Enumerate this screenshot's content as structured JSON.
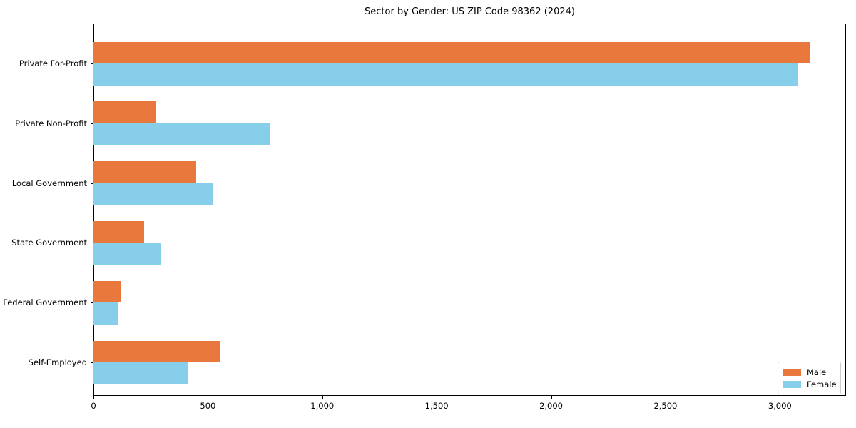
{
  "chart_data": {
    "type": "bar",
    "orientation": "horizontal",
    "title": "Sector by Gender: US ZIP Code 98362 (2024)",
    "xlabel": "",
    "ylabel": "",
    "categories": [
      "Private For-Profit",
      "Private Non-Profit",
      "Local Government",
      "State Government",
      "Federal Government",
      "Self-Employed"
    ],
    "series": [
      {
        "name": "Male",
        "color": "#E8783C",
        "values": [
          3130,
          270,
          450,
          220,
          120,
          555
        ]
      },
      {
        "name": "Female",
        "color": "#87CEEB",
        "values": [
          3080,
          770,
          520,
          295,
          110,
          415
        ]
      }
    ],
    "xlim": [
      0,
      3289
    ],
    "xticks": [
      0,
      500,
      1000,
      1500,
      2000,
      2500,
      3000
    ],
    "xtick_labels": [
      "0",
      "500",
      "1,000",
      "1,500",
      "2,000",
      "2,500",
      "3,000"
    ],
    "grid": false,
    "legend": {
      "position": "lower right"
    },
    "axis_color": "#000000",
    "background_color": "#ffffff"
  }
}
